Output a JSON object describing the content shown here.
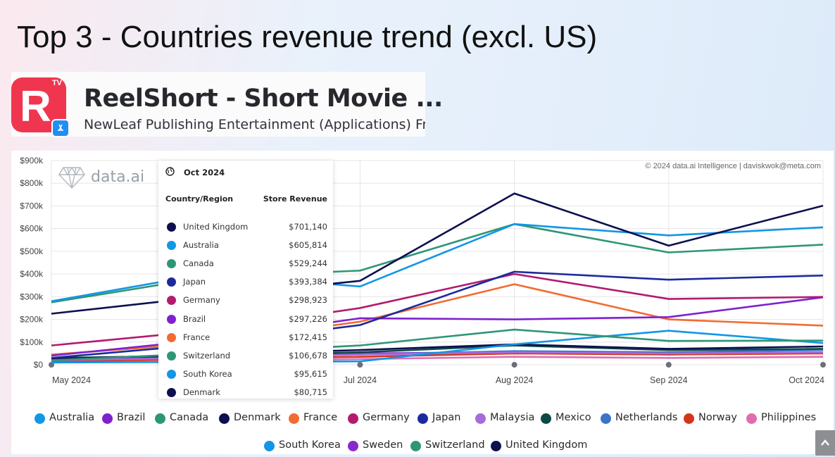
{
  "slide": {
    "title": "Top 3 - Countries revenue trend (excl. US)"
  },
  "app": {
    "name": "ReelShort - Short Movie ...",
    "publisher": "NewLeaf Publishing Entertainment (Applications) Fr",
    "icon_letter": "R",
    "icon_badge": "TV",
    "icon_color": "#f0364f",
    "store_badge_icon": "app-store-icon"
  },
  "chart": {
    "watermark": "data.ai",
    "copyright": "© 2024 data.ai Intelligence | daviskwok@meta.com"
  },
  "tooltip": {
    "date": "Oct 2024",
    "col_country": "Country/Region",
    "col_value": "Store Revenue",
    "rows": [
      {
        "name": "United Kingdom",
        "value": "$701,140",
        "color": "#0d0f4f"
      },
      {
        "name": "Australia",
        "value": "$605,814",
        "color": "#1296e6"
      },
      {
        "name": "Canada",
        "value": "$529,244",
        "color": "#2e9677"
      },
      {
        "name": "Japan",
        "value": "$393,384",
        "color": "#1b2a9e"
      },
      {
        "name": "Germany",
        "value": "$298,923",
        "color": "#b41a6e"
      },
      {
        "name": "Brazil",
        "value": "$297,226",
        "color": "#7e22ce"
      },
      {
        "name": "France",
        "value": "$172,415",
        "color": "#f26b32"
      },
      {
        "name": "Switzerland",
        "value": "$106,678",
        "color": "#2e9677"
      },
      {
        "name": "South Korea",
        "value": "$95,615",
        "color": "#1296e6"
      },
      {
        "name": "Denmark",
        "value": "$80,715",
        "color": "#0d0f4f"
      }
    ]
  },
  "chart_data": {
    "type": "line",
    "title": "",
    "xlabel": "",
    "ylabel": "",
    "x": [
      "May 2024",
      "Jun 2024",
      "Jul 2024",
      "Aug 2024",
      "Sep 2024",
      "Oct 2024"
    ],
    "x_visible_labels": [
      "May 2024",
      "Jul 2024",
      "Aug 2024",
      "Sep 2024",
      "Oct 2024"
    ],
    "ylim": [
      0,
      900000
    ],
    "yticks": [
      0,
      100000,
      200000,
      300000,
      400000,
      500000,
      600000,
      700000,
      800000,
      900000
    ],
    "ytick_labels": [
      "$0",
      "$100k",
      "$200k",
      "$300k",
      "$400k",
      "$500k",
      "$600k",
      "$700k",
      "$800k",
      "$900k"
    ],
    "grid": true,
    "legend_position": "bottom",
    "series": [
      {
        "name": "United Kingdom",
        "color": "#0d0f4f",
        "values": [
          225000,
          300000,
          370000,
          755000,
          525000,
          701140
        ]
      },
      {
        "name": "Australia",
        "color": "#1296e6",
        "values": [
          280000,
          400000,
          345000,
          620000,
          570000,
          605814
        ]
      },
      {
        "name": "Canada",
        "color": "#2e9677",
        "values": [
          275000,
          385000,
          415000,
          620000,
          495000,
          529244
        ]
      },
      {
        "name": "Japan",
        "color": "#1b2a9e",
        "values": [
          30000,
          90000,
          175000,
          410000,
          375000,
          393384
        ]
      },
      {
        "name": "Germany",
        "color": "#b41a6e",
        "values": [
          85000,
          150000,
          250000,
          400000,
          290000,
          298923
        ]
      },
      {
        "name": "Brazil",
        "color": "#7e22ce",
        "values": [
          40000,
          110000,
          205000,
          200000,
          210000,
          297226
        ]
      },
      {
        "name": "France",
        "color": "#f26b32",
        "values": [
          45000,
          95000,
          190000,
          355000,
          200000,
          172415
        ]
      },
      {
        "name": "Switzerland",
        "color": "#2e9677",
        "values": [
          20000,
          50000,
          85000,
          155000,
          105000,
          106678
        ]
      },
      {
        "name": "South Korea",
        "color": "#1296e6",
        "values": [
          10000,
          12000,
          15000,
          90000,
          150000,
          95615
        ]
      },
      {
        "name": "Denmark",
        "color": "#0d0f4f",
        "values": [
          25000,
          45000,
          65000,
          90000,
          70000,
          80715
        ]
      },
      {
        "name": "Malaysia",
        "color": "#a66bd8",
        "values": [
          20000,
          30000,
          45000,
          55000,
          50000,
          55000
        ]
      },
      {
        "name": "Mexico",
        "color": "#0e4a45",
        "values": [
          30000,
          40000,
          55000,
          85000,
          65000,
          70000
        ]
      },
      {
        "name": "Netherlands",
        "color": "#3b73c9",
        "values": [
          20000,
          30000,
          45000,
          60000,
          55000,
          65000
        ]
      },
      {
        "name": "Norway",
        "color": "#d4361b",
        "values": [
          15000,
          25000,
          35000,
          50000,
          45000,
          50000
        ]
      },
      {
        "name": "Philippines",
        "color": "#e06db0",
        "values": [
          10000,
          15000,
          25000,
          35000,
          30000,
          35000
        ]
      },
      {
        "name": "Sweden",
        "color": "#8b28c9",
        "values": [
          25000,
          35000,
          50000,
          55000,
          45000,
          55000
        ]
      }
    ]
  },
  "legend": {
    "row1": [
      {
        "name": "Australia",
        "color": "#1296e6"
      },
      {
        "name": "Brazil",
        "color": "#7e22ce"
      },
      {
        "name": "Canada",
        "color": "#2e9677"
      },
      {
        "name": "Denmark",
        "color": "#0d0f4f"
      },
      {
        "name": "France",
        "color": "#f26b32"
      },
      {
        "name": "Germany",
        "color": "#b41a6e"
      },
      {
        "name": "Japan",
        "color": "#1b2a9e"
      },
      {
        "name": "Malaysia",
        "color": "#a66bd8"
      },
      {
        "name": "Mexico",
        "color": "#0e4a45"
      },
      {
        "name": "Netherlands",
        "color": "#3b73c9"
      },
      {
        "name": "Norway",
        "color": "#d4361b"
      },
      {
        "name": "Philippines",
        "color": "#e06db0"
      }
    ],
    "row2": [
      {
        "name": "South Korea",
        "color": "#1296e6"
      },
      {
        "name": "Sweden",
        "color": "#8b28c9"
      },
      {
        "name": "Switzerland",
        "color": "#2e9677"
      },
      {
        "name": "United Kingdom",
        "color": "#0d0f4f"
      }
    ]
  },
  "ui": {
    "scroll_top_icon": "chevron-up-icon"
  }
}
